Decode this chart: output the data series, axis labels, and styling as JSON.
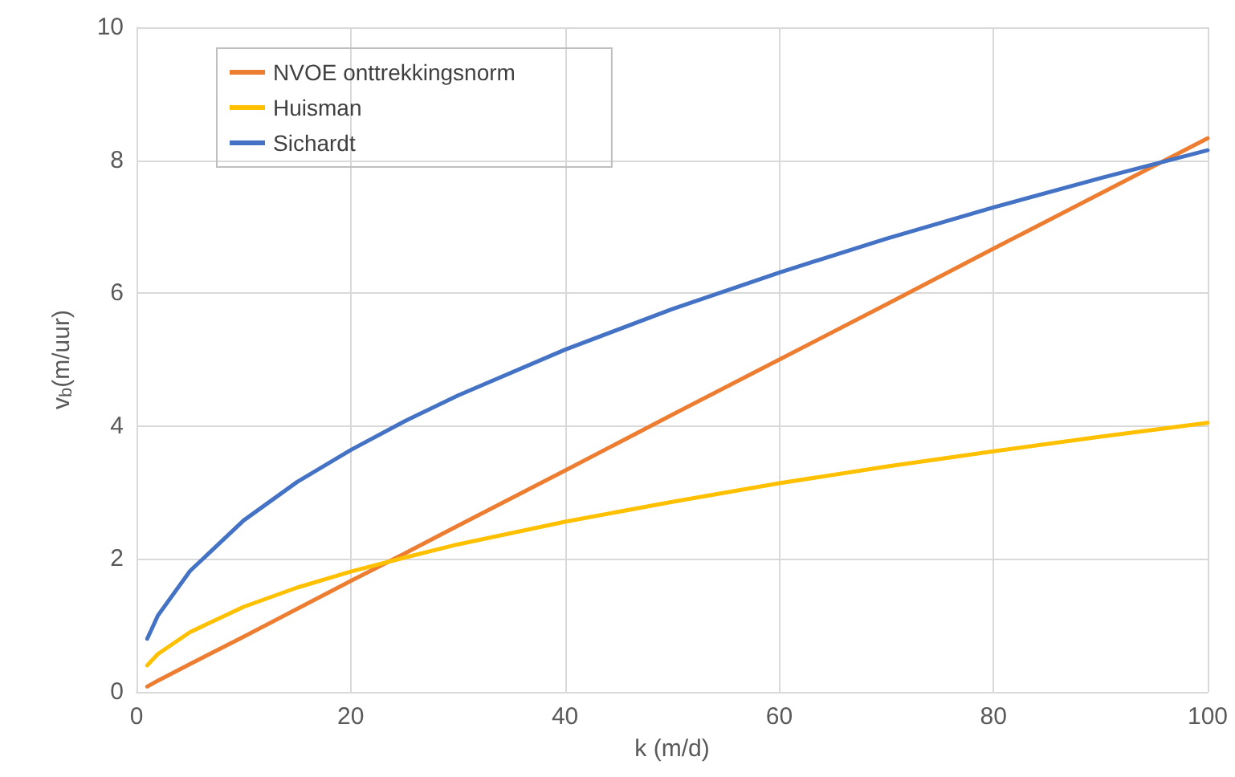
{
  "chart_data": {
    "type": "line",
    "xlabel": "k (m/d)",
    "ylabel": "v$_{b}$(m/uur)",
    "x": [
      1,
      2,
      5,
      10,
      15,
      20,
      25,
      30,
      40,
      50,
      60,
      70,
      80,
      90,
      100
    ],
    "series": [
      {
        "name": "NVOE onttrekkingsnorm",
        "color": "#ed7d31",
        "values": [
          0.08,
          0.17,
          0.42,
          0.83,
          1.25,
          1.67,
          2.08,
          2.5,
          3.33,
          4.17,
          5.0,
          5.83,
          6.67,
          7.5,
          8.33
        ]
      },
      {
        "name": "Huisman",
        "color": "#ffc000",
        "values": [
          0.4,
          0.57,
          0.9,
          1.28,
          1.57,
          1.81,
          2.02,
          2.22,
          2.56,
          2.86,
          3.14,
          3.39,
          3.62,
          3.84,
          4.05
        ]
      },
      {
        "name": "Sichardt",
        "color": "#4472c4",
        "values": [
          0.8,
          1.15,
          1.82,
          2.58,
          3.16,
          3.64,
          4.07,
          4.46,
          5.15,
          5.76,
          6.31,
          6.82,
          7.29,
          7.73,
          8.15
        ]
      }
    ],
    "xlim": [
      0,
      100
    ],
    "xticks": [
      0,
      20,
      40,
      60,
      80,
      100
    ],
    "ylim": [
      0,
      10
    ],
    "yticks": [
      0,
      2,
      4,
      6,
      8,
      10
    ],
    "grid": true,
    "legend": "top left",
    "marker": "none",
    "line_style": "solid"
  }
}
